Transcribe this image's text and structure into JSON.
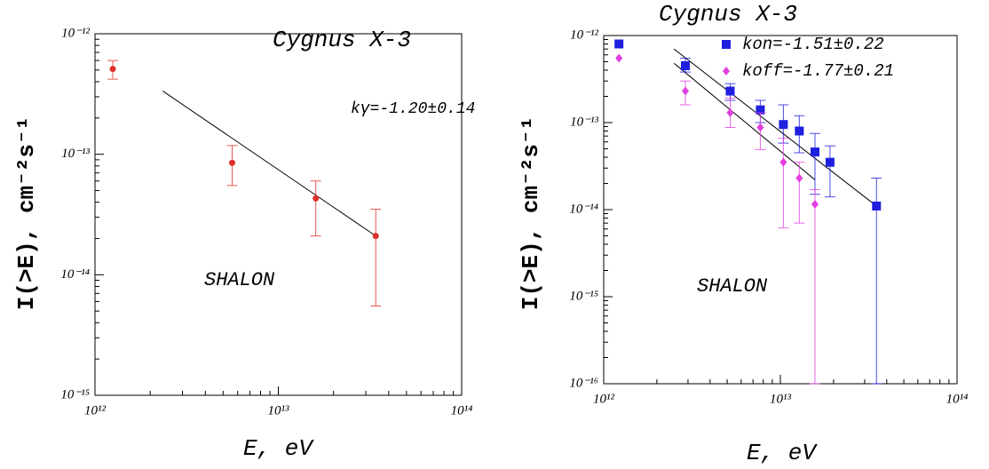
{
  "chart_data": [
    {
      "type": "scatter",
      "title": "Cygnus X-3",
      "xlabel": "E, eV",
      "ylabel": "I(>E), cm⁻²s⁻¹",
      "log_x": true,
      "log_y": true,
      "xlim": [
        1000000000000.0,
        100000000000000.0
      ],
      "ylim": [
        1e-15,
        1e-12
      ],
      "xticks": [
        {
          "value": 1000000000000.0,
          "label": "10¹²"
        },
        {
          "value": 10000000000000.0,
          "label": "10¹³"
        },
        {
          "value": 100000000000000.0,
          "label": "10¹⁴"
        }
      ],
      "yticks": [
        {
          "value": 1e-15,
          "label": "10⁻¹⁵"
        },
        {
          "value": 1e-14,
          "label": "10⁻¹⁴"
        },
        {
          "value": 1e-13,
          "label": "10⁻¹³"
        },
        {
          "value": 1e-12,
          "label": "10⁻¹²"
        }
      ],
      "annotations": [
        "SHALON",
        "kγ=-1.20±0.14"
      ],
      "series": [
        {
          "color": "#e0302a",
          "marker": "circle",
          "x": [
            1250000000000.0,
            5600000000000.0,
            16000000000000.0,
            34000000000000.0
          ],
          "values": [
            5.1e-13,
            8.5e-14,
            4.3e-14,
            2.1e-14
          ],
          "lower": [
            4.2e-13,
            5.5e-14,
            2.1e-14,
            5.5e-15
          ],
          "upper": [
            6e-13,
            1.18e-13,
            6e-14,
            3.5e-14
          ]
        }
      ],
      "fits": [
        {
          "color": "#000000",
          "x": [
            2340000000000.0,
            34000000000000.0
          ],
          "values": [
            3.35e-13,
            2.1e-14
          ]
        }
      ]
    },
    {
      "type": "scatter",
      "title": "Cygnus X-3",
      "xlabel": "E, eV",
      "ylabel": "I(>E), cm⁻²s⁻¹",
      "log_x": true,
      "log_y": true,
      "xlim": [
        1000000000000.0,
        100000000000000.0
      ],
      "ylim": [
        1e-16,
        1e-12
      ],
      "xticks": [
        {
          "value": 1000000000000.0,
          "label": "10¹²"
        },
        {
          "value": 10000000000000.0,
          "label": "10¹³"
        },
        {
          "value": 100000000000000.0,
          "label": "10¹⁴"
        }
      ],
      "yticks": [
        {
          "value": 1e-16,
          "label": "10⁻¹⁶"
        },
        {
          "value": 1e-15,
          "label": "10⁻¹⁵"
        },
        {
          "value": 1e-14,
          "label": "10⁻¹⁴"
        },
        {
          "value": 1e-13,
          "label": "10⁻¹³"
        },
        {
          "value": 1e-12,
          "label": "10⁻¹²"
        }
      ],
      "annotations": [
        "SHALON"
      ],
      "series": [
        {
          "name": "kon=-1.51±0.22",
          "color": "#1f1fe0",
          "marker": "square",
          "x": [
            1220000000000.0,
            2900000000000.0,
            5200000000000.0,
            7700000000000.0,
            10400000000000.0,
            12800000000000.0,
            15700000000000.0,
            19100000000000.0,
            35000000000000.0
          ],
          "values": [
            8e-13,
            4.5e-13,
            2.3e-13,
            1.4e-13,
            9.5e-14,
            8e-14,
            4.6e-14,
            3.5e-14,
            1.1e-14
          ],
          "lower": [
            null,
            3.8e-13,
            1.8e-13,
            1e-13,
            5.8e-14,
            4.5e-14,
            1.5e-14,
            1.4e-14,
            1e-16
          ],
          "upper": [
            null,
            5.5e-13,
            2.8e-13,
            1.8e-13,
            1.6e-13,
            1.2e-13,
            7.5e-14,
            5.4e-14,
            2.3e-14
          ]
        },
        {
          "name": "koff=-1.77±0.21",
          "color": "#e23ee0",
          "marker": "diamond",
          "x": [
            1220000000000.0,
            2900000000000.0,
            5200000000000.0,
            7700000000000.0,
            10400000000000.0,
            12800000000000.0,
            15700000000000.0
          ],
          "values": [
            5.5e-13,
            2.3e-13,
            1.3e-13,
            8.8e-14,
            3.5e-14,
            2.3e-14,
            1.15e-14
          ],
          "lower": [
            null,
            1.6e-13,
            8.8e-14,
            4.9e-14,
            6.2e-15,
            7e-15,
            1e-16
          ],
          "upper": [
            null,
            3e-13,
            1.9e-13,
            1.3e-13,
            6.6e-14,
            3.5e-14,
            1.7e-14
          ]
        }
      ],
      "fits": [
        {
          "color": "#000000",
          "x": [
            2500000000000.0,
            35000000000000.0
          ],
          "values": [
            7e-13,
            1.1e-14
          ]
        },
        {
          "color": "#000000",
          "x": [
            2500000000000.0,
            15700000000000.0
          ],
          "values": [
            4.8e-13,
            2.2e-14
          ]
        }
      ]
    }
  ]
}
